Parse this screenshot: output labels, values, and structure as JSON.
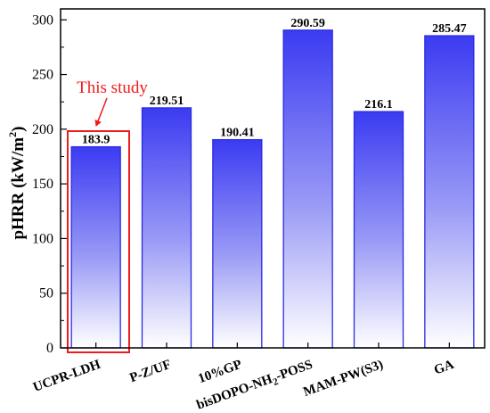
{
  "chart_data": {
    "type": "bar",
    "ylabel_main": "pHRR (kW/m",
    "ylabel_sup": "2",
    "ylabel_close": ")",
    "xlabel": "",
    "ylim": [
      0,
      310
    ],
    "yticks": [
      0,
      50,
      100,
      150,
      200,
      250,
      300
    ],
    "categories": [
      {
        "label": "UCPR-LDH"
      },
      {
        "label": "P-Z/UF"
      },
      {
        "label": "10%GP"
      },
      {
        "label": "bisDOPO-NH",
        "sub": "2",
        "suffix": "-POSS"
      },
      {
        "label": "MAM-PW(S3)"
      },
      {
        "label": "GA"
      }
    ],
    "values": [
      183.9,
      219.51,
      190.41,
      290.59,
      216.1,
      285.47
    ],
    "value_labels": [
      "183.9",
      "219.51",
      "190.41",
      "290.59",
      "216.1",
      "285.47"
    ],
    "bar_color_top": "#3b3bf2",
    "bar_color_bottom": "#ffffff",
    "bar_edge_color": "#2b2be0",
    "annotation": {
      "text": "This study",
      "color": "#ee1c1c",
      "target_index": 0
    }
  }
}
